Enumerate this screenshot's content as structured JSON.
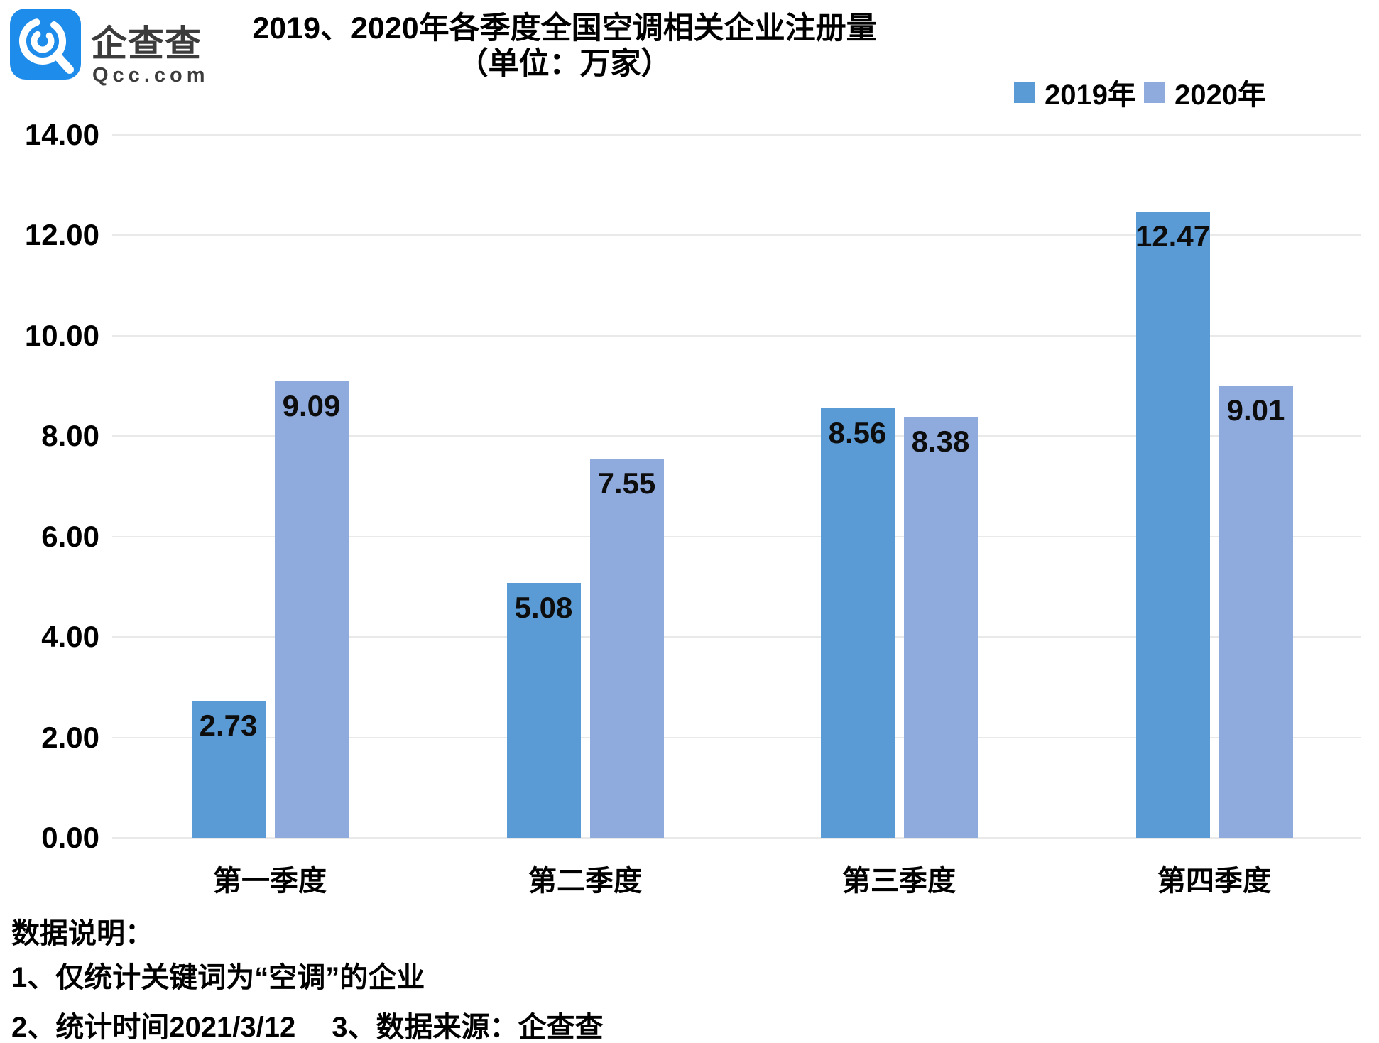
{
  "logo": {
    "brand": "企查查",
    "domain": "Qcc.com"
  },
  "title": "2019、2020年各季度全国空调相关企业注册量",
  "subtitle": "（单位：万家）",
  "footer": {
    "heading": "数据说明：",
    "note1": "1、仅统计关键词为“空调”的企业",
    "note2": "2、统计时间2021/3/12　 3、数据来源：企查查"
  },
  "chart_data": {
    "type": "bar",
    "title": "2019、2020年各季度全国空调相关企业注册量",
    "unit_label": "（单位：万家）",
    "categories": [
      "第一季度",
      "第二季度",
      "第三季度",
      "第四季度"
    ],
    "series": [
      {
        "name": "2019年",
        "color": "#5B9BD5",
        "values": [
          2.73,
          5.08,
          8.56,
          12.47
        ]
      },
      {
        "name": "2020年",
        "color": "#8FAADC",
        "values": [
          9.09,
          7.55,
          8.38,
          9.01
        ]
      }
    ],
    "ylim": [
      0,
      14
    ],
    "ytick_step": 2,
    "ytick_format_decimals": 2,
    "grid": true,
    "legend_position": "top-right",
    "value_labels": "inside-top",
    "colors": {
      "grid": "#E9E9E9",
      "logo_blue": "#1E8CEA"
    }
  }
}
